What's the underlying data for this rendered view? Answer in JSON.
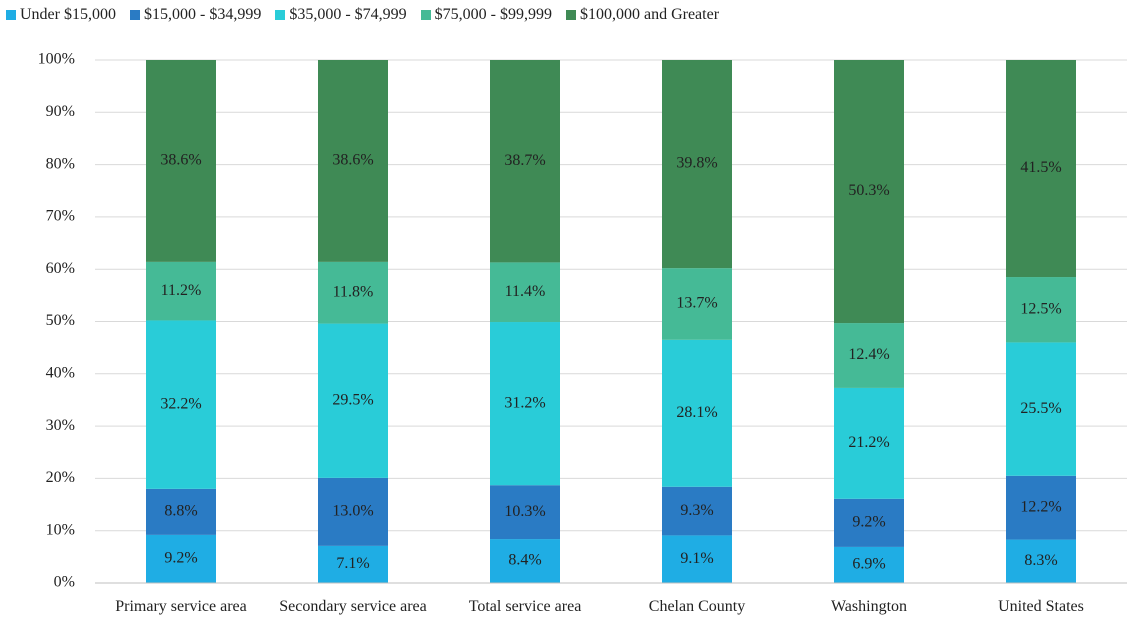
{
  "chart_data": {
    "type": "stacked_bar",
    "categories": [
      "Primary service area",
      "Secondary service area",
      "Total service area",
      "Chelan County",
      "Washington",
      "United States"
    ],
    "series": [
      {
        "name": "Under $15,000",
        "color": "#1fade4",
        "values": [
          9.2,
          7.1,
          8.4,
          9.1,
          6.9,
          8.3
        ],
        "value_labels": [
          "9.2%",
          "7.1%",
          "8.4%",
          "9.1%",
          "6.9%",
          "8.3%"
        ]
      },
      {
        "name": "$15,000 - $34,999",
        "color": "#2a7bc4",
        "values": [
          8.8,
          13.0,
          10.3,
          9.3,
          9.2,
          12.2
        ],
        "value_labels": [
          "8.8%",
          "13.0%",
          "10.3%",
          "9.3%",
          "9.2%",
          "12.2%"
        ]
      },
      {
        "name": "$35,000 - $74,999",
        "color": "#29ccd8",
        "values": [
          32.2,
          29.5,
          31.2,
          28.1,
          21.2,
          25.5
        ],
        "value_labels": [
          "32.2%",
          "29.5%",
          "31.2%",
          "28.1%",
          "21.2%",
          "25.5%"
        ]
      },
      {
        "name": "$75,000 - $99,999",
        "color": "#45ba96",
        "values": [
          11.2,
          11.8,
          11.4,
          13.7,
          12.4,
          12.5
        ],
        "value_labels": [
          "11.2%",
          "11.8%",
          "11.4%",
          "13.7%",
          "12.4%",
          "12.5%"
        ]
      },
      {
        "name": "$100,000 and Greater",
        "color": "#3f8a55",
        "values": [
          38.6,
          38.6,
          38.7,
          39.8,
          50.3,
          41.5
        ],
        "value_labels": [
          "38.6%",
          "38.6%",
          "38.7%",
          "39.8%",
          "50.3%",
          "41.5%"
        ]
      }
    ],
    "ylim": [
      0,
      100
    ],
    "yticks": [
      {
        "value": 0,
        "label": "0%"
      },
      {
        "value": 10,
        "label": "10%"
      },
      {
        "value": 20,
        "label": "20%"
      },
      {
        "value": 30,
        "label": "30%"
      },
      {
        "value": 40,
        "label": "40%"
      },
      {
        "value": 50,
        "label": "50%"
      },
      {
        "value": 60,
        "label": "60%"
      },
      {
        "value": 70,
        "label": "70%"
      },
      {
        "value": 80,
        "label": "80%"
      },
      {
        "value": 90,
        "label": "90%"
      },
      {
        "value": 100,
        "label": "100%"
      }
    ],
    "grid": true,
    "legend": "top"
  }
}
